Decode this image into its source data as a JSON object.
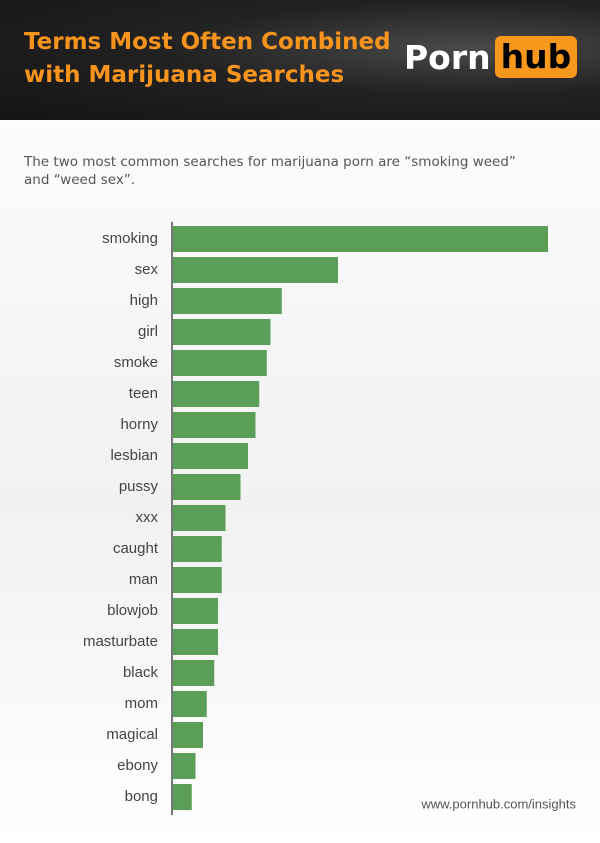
{
  "chart_data": {
    "type": "bar",
    "orientation": "horizontal",
    "title": "Terms Most Often Combined with Marijuana Searches",
    "subtitle": "The two most common searches for marijuana porn are “smoking weed” and “weed sex”.",
    "categories": [
      "smoking",
      "sex",
      "high",
      "girl",
      "smoke",
      "teen",
      "horny",
      "lesbian",
      "pussy",
      "xxx",
      "caught",
      "man",
      "blowjob",
      "masturbate",
      "black",
      "mom",
      "magical",
      "ebony",
      "bong"
    ],
    "values": [
      100,
      44,
      29,
      26,
      25,
      23,
      22,
      20,
      18,
      14,
      13,
      13,
      12,
      12,
      11,
      9,
      8,
      6,
      5
    ],
    "color": "#5a9e58",
    "source": "www.pornhub.com/insights"
  },
  "logo": {
    "left": "Porn",
    "right": "hub"
  }
}
